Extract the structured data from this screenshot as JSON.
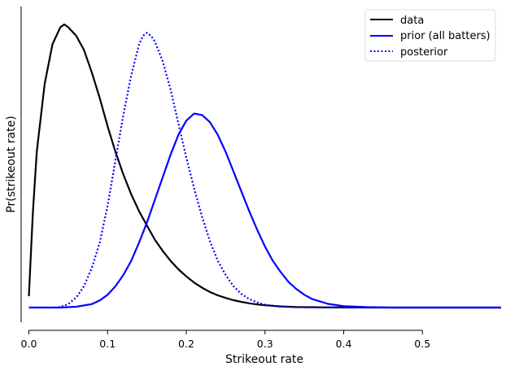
{
  "chart_data": {
    "type": "line",
    "xlabel": "Strikeout rate",
    "ylabel": "Pr(strikeout rate)",
    "xlim": [
      0.0,
      0.6
    ],
    "x_ticks": [
      "0.0",
      "0.1",
      "0.2",
      "0.3",
      "0.4",
      "0.5"
    ],
    "y_ticks_visible": false,
    "grid": false,
    "legend_position": "top-right",
    "series": [
      {
        "name": "data",
        "color": "#000000",
        "style": "solid",
        "points": [
          [
            0.0,
            0.04
          ],
          [
            0.005,
            0.33
          ],
          [
            0.01,
            0.55
          ],
          [
            0.02,
            0.79
          ],
          [
            0.03,
            0.93
          ],
          [
            0.04,
            0.99
          ],
          [
            0.045,
            1.0
          ],
          [
            0.05,
            0.99
          ],
          [
            0.06,
            0.96
          ],
          [
            0.07,
            0.91
          ],
          [
            0.08,
            0.83
          ],
          [
            0.09,
            0.74
          ],
          [
            0.1,
            0.64
          ],
          [
            0.11,
            0.55
          ],
          [
            0.12,
            0.47
          ],
          [
            0.13,
            0.4
          ],
          [
            0.14,
            0.34
          ],
          [
            0.15,
            0.29
          ],
          [
            0.16,
            0.24
          ],
          [
            0.17,
            0.2
          ],
          [
            0.18,
            0.165
          ],
          [
            0.19,
            0.135
          ],
          [
            0.2,
            0.11
          ],
          [
            0.21,
            0.088
          ],
          [
            0.22,
            0.07
          ],
          [
            0.23,
            0.055
          ],
          [
            0.24,
            0.043
          ],
          [
            0.25,
            0.034
          ],
          [
            0.26,
            0.026
          ],
          [
            0.27,
            0.02
          ],
          [
            0.28,
            0.015
          ],
          [
            0.29,
            0.011
          ],
          [
            0.3,
            0.008
          ],
          [
            0.32,
            0.004
          ],
          [
            0.34,
            0.002
          ],
          [
            0.37,
            0.0008
          ],
          [
            0.4,
            0.0003
          ],
          [
            0.45,
            0.0
          ],
          [
            0.5,
            0.0
          ],
          [
            0.6,
            0.0
          ]
        ]
      },
      {
        "name": "prior (all batters)",
        "color": "#0000ff",
        "style": "solid",
        "points": [
          [
            0.0,
            0.0
          ],
          [
            0.04,
            0.0
          ],
          [
            0.06,
            0.003
          ],
          [
            0.08,
            0.012
          ],
          [
            0.09,
            0.025
          ],
          [
            0.1,
            0.045
          ],
          [
            0.11,
            0.075
          ],
          [
            0.12,
            0.115
          ],
          [
            0.13,
            0.165
          ],
          [
            0.14,
            0.23
          ],
          [
            0.15,
            0.3
          ],
          [
            0.16,
            0.38
          ],
          [
            0.17,
            0.46
          ],
          [
            0.18,
            0.54
          ],
          [
            0.19,
            0.61
          ],
          [
            0.2,
            0.66
          ],
          [
            0.21,
            0.685
          ],
          [
            0.22,
            0.68
          ],
          [
            0.23,
            0.655
          ],
          [
            0.24,
            0.61
          ],
          [
            0.25,
            0.55
          ],
          [
            0.26,
            0.48
          ],
          [
            0.27,
            0.41
          ],
          [
            0.28,
            0.34
          ],
          [
            0.29,
            0.275
          ],
          [
            0.3,
            0.215
          ],
          [
            0.31,
            0.165
          ],
          [
            0.32,
            0.125
          ],
          [
            0.33,
            0.09
          ],
          [
            0.34,
            0.065
          ],
          [
            0.35,
            0.045
          ],
          [
            0.36,
            0.03
          ],
          [
            0.38,
            0.013
          ],
          [
            0.4,
            0.005
          ],
          [
            0.43,
            0.0015
          ],
          [
            0.46,
            0.0
          ],
          [
            0.5,
            0.0
          ],
          [
            0.6,
            0.0
          ]
        ]
      },
      {
        "name": "posterior",
        "color": "#0000ff",
        "style": "dotted",
        "points": [
          [
            0.0,
            0.0
          ],
          [
            0.03,
            0.0
          ],
          [
            0.04,
            0.002
          ],
          [
            0.05,
            0.012
          ],
          [
            0.06,
            0.035
          ],
          [
            0.07,
            0.075
          ],
          [
            0.08,
            0.14
          ],
          [
            0.09,
            0.23
          ],
          [
            0.1,
            0.36
          ],
          [
            0.11,
            0.52
          ],
          [
            0.12,
            0.68
          ],
          [
            0.13,
            0.82
          ],
          [
            0.14,
            0.93
          ],
          [
            0.145,
            0.96
          ],
          [
            0.15,
            0.97
          ],
          [
            0.155,
            0.96
          ],
          [
            0.16,
            0.94
          ],
          [
            0.17,
            0.87
          ],
          [
            0.18,
            0.77
          ],
          [
            0.19,
            0.65
          ],
          [
            0.2,
            0.53
          ],
          [
            0.21,
            0.42
          ],
          [
            0.22,
            0.32
          ],
          [
            0.23,
            0.235
          ],
          [
            0.24,
            0.165
          ],
          [
            0.25,
            0.115
          ],
          [
            0.26,
            0.075
          ],
          [
            0.27,
            0.048
          ],
          [
            0.28,
            0.03
          ],
          [
            0.29,
            0.018
          ],
          [
            0.3,
            0.01
          ],
          [
            0.32,
            0.003
          ],
          [
            0.34,
            0.001
          ],
          [
            0.37,
            0.0
          ],
          [
            0.5,
            0.0
          ],
          [
            0.6,
            0.0
          ]
        ]
      }
    ]
  }
}
